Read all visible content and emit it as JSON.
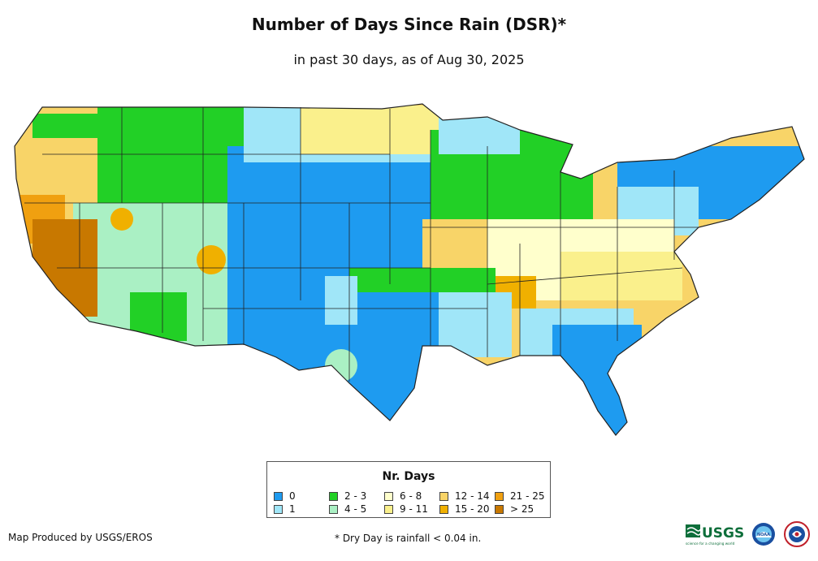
{
  "title": "Number of Days Since Rain (DSR)*",
  "subtitle": "in past 30 days, as of Aug 30, 2025",
  "legend": {
    "title": "Nr. Days",
    "items": [
      {
        "label": "0",
        "color": "#1e9bf0"
      },
      {
        "label": "1",
        "color": "#a0e6f8"
      },
      {
        "label": "2 - 3",
        "color": "#22d026"
      },
      {
        "label": "4 - 5",
        "color": "#aaf0c4"
      },
      {
        "label": "6 - 8",
        "color": "#ffffcc"
      },
      {
        "label": "9 - 11",
        "color": "#faf08c"
      },
      {
        "label": "12 - 14",
        "color": "#f8d468"
      },
      {
        "label": "15 - 20",
        "color": "#f0b000"
      },
      {
        "label": "21 - 25",
        "color": "#f0a010"
      },
      {
        "label": "> 25",
        "color": "#c87800"
      }
    ]
  },
  "credit": "Map Produced by USGS/EROS",
  "footnote": "* Dry Day is rainfall < 0.04 in.",
  "logos": {
    "usgs_text": "USGS",
    "usgs_tagline": "science for a changing world",
    "noaa_text": "NOAA"
  }
}
